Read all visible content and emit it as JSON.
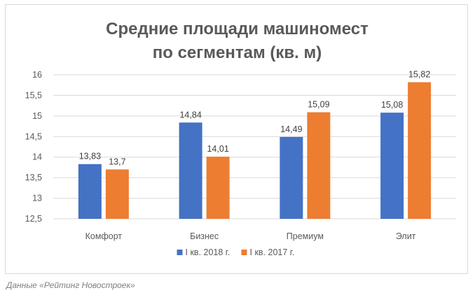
{
  "chart_data": {
    "type": "bar",
    "title_lines": [
      "Средние площади машиномест",
      "по сегментам (кв. м)"
    ],
    "categories": [
      "Комфорт",
      "Бизнес",
      "Премиум",
      "Элит"
    ],
    "series": [
      {
        "name": "I кв. 2018 г.",
        "color": "#4472c4",
        "values": [
          13.83,
          14.84,
          14.49,
          15.08
        ],
        "labels": [
          "13,83",
          "14,84",
          "14,49",
          "15,08"
        ]
      },
      {
        "name": "I кв. 2017 г.",
        "color": "#ed7d31",
        "values": [
          13.7,
          14.01,
          15.09,
          15.82
        ],
        "labels": [
          "13,7",
          "14,01",
          "15,09",
          "15,82"
        ]
      }
    ],
    "ylim": [
      12.5,
      16
    ],
    "yticks": [
      12.5,
      13,
      13.5,
      14,
      14.5,
      15,
      15.5,
      16
    ],
    "ytick_labels": [
      "12,5",
      "13",
      "13,5",
      "14",
      "14,5",
      "15",
      "15,5",
      "16"
    ],
    "grid": true,
    "legend_position": "bottom"
  },
  "caption": "Данные «Рейтинг Новостроек»"
}
